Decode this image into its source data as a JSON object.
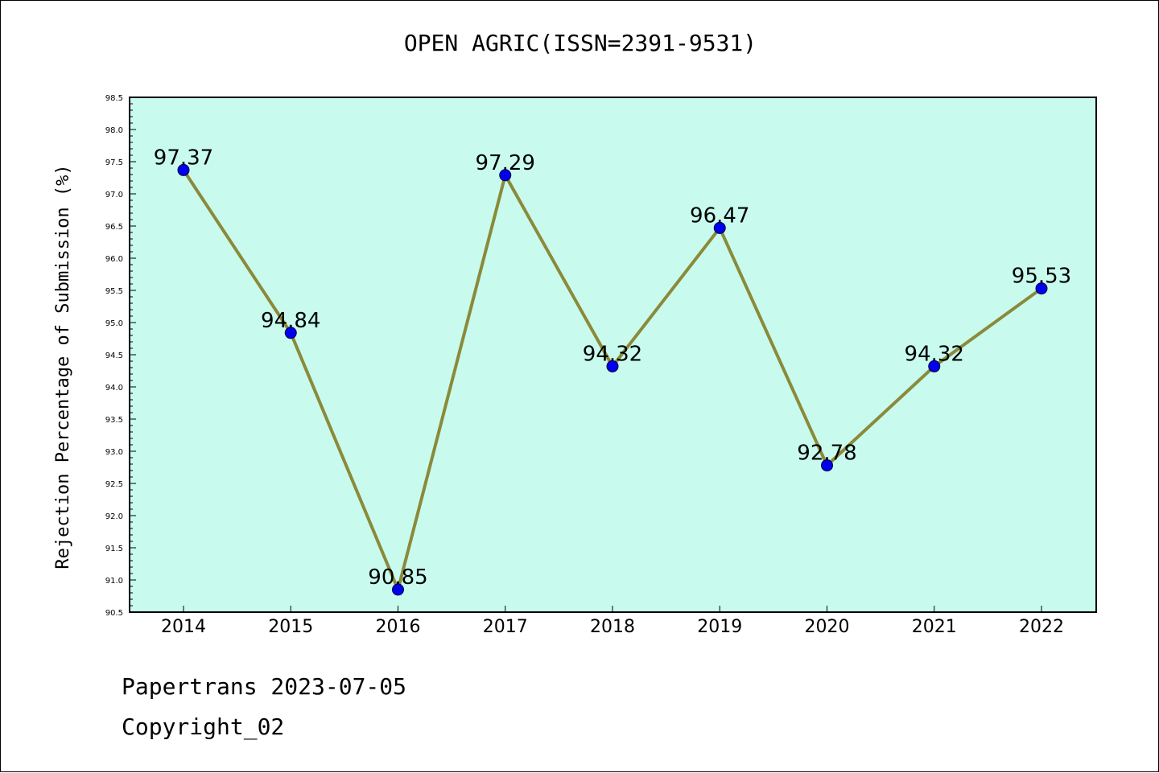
{
  "title": "OPEN AGRIC(ISSN=2391-9531)",
  "footer": {
    "line1": "Papertrans 2023-07-05",
    "line2": "Copyright_02"
  },
  "chart_data": {
    "type": "line",
    "title": "OPEN AGRIC(ISSN=2391-9531)",
    "xlabel": "",
    "ylabel": "Rejection Percentage of Submission (%)",
    "categories": [
      "2014",
      "2015",
      "2016",
      "2017",
      "2018",
      "2019",
      "2020",
      "2021",
      "2022"
    ],
    "values": [
      97.37,
      94.84,
      90.85,
      97.29,
      94.32,
      96.47,
      92.78,
      94.32,
      95.53
    ],
    "data_labels": [
      "97.37",
      "94.84",
      "90.85",
      "97.29",
      "94.32",
      "96.47",
      "92.78",
      "94.32",
      "95.53"
    ],
    "ylim": [
      90.5,
      98.5
    ],
    "yticks": [
      "90.5",
      "91.0",
      "91.5",
      "92.0",
      "92.5",
      "93.0",
      "93.5",
      "94.0",
      "94.5",
      "95.0",
      "95.5",
      "96.0",
      "96.5",
      "97.0",
      "97.5",
      "98.0",
      "98.5"
    ],
    "grid": false,
    "colors": {
      "background": "#c8fbee",
      "line": "#8b8a3a",
      "marker": "#0000ee"
    }
  }
}
